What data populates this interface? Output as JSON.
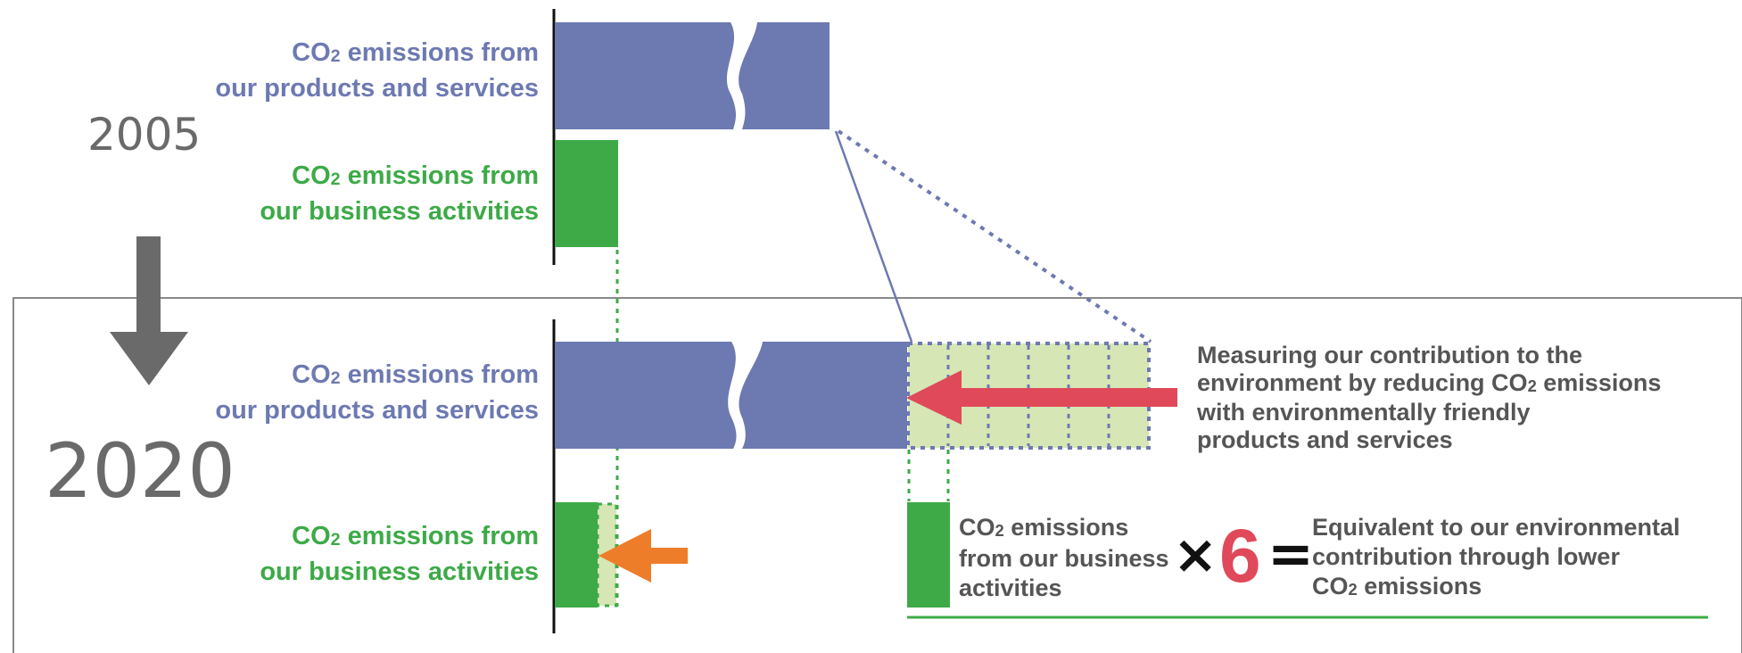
{
  "years": {
    "y2005": "2005",
    "y2020": "2020"
  },
  "labels": {
    "products_2005": {
      "l1a": "CO",
      "l1sub": "2",
      "l1b": " emissions from",
      "l2": "our products and services"
    },
    "business_2005": {
      "l1a": "CO",
      "l1sub": "2",
      "l1b": " emissions from",
      "l2": "our business activities"
    },
    "products_2020": {
      "l1a": "CO",
      "l1sub": "2",
      "l1b": " emissions from",
      "l2": "our products and services"
    },
    "business_2020": {
      "l1a": "CO",
      "l1sub": "2",
      "l1b": " emissions from",
      "l2": "our business activities"
    }
  },
  "contribution_note": {
    "line1": "Measuring our contribution to the",
    "line2a": "environment by reducing CO",
    "line2sub": "2",
    "line2b": " emissions",
    "line3": "with environmentally friendly",
    "line4": "products and services"
  },
  "equation": {
    "left": {
      "line1a": "CO",
      "line1sub": "2",
      "line1b": " emissions",
      "line2": "from our business",
      "line3": "activities"
    },
    "times": "×",
    "factor": "6",
    "equals": "=",
    "right": {
      "line1": "Equivalent to our environmental",
      "line2": "contribution through lower",
      "line3a": "CO",
      "line3sub": "2",
      "line3b": " emissions"
    }
  },
  "colors": {
    "products": "#6d79b1",
    "business": "#3daa47",
    "reduction_fill": "#d6e6b5",
    "red_arrow": "#e0495a",
    "orange_arrow": "#ee7d2a",
    "down_arrow": "#6a6a6a"
  }
}
